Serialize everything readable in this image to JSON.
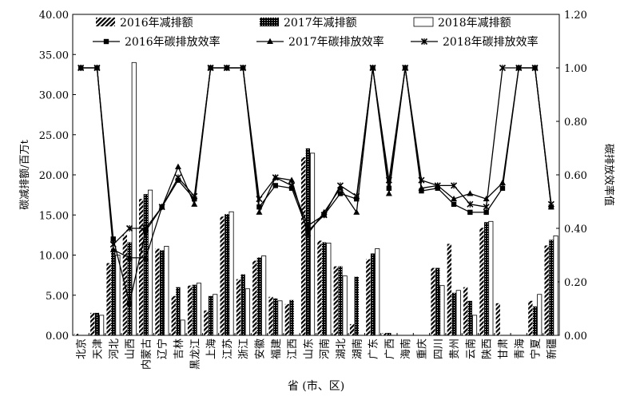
{
  "chart_data": {
    "type": "bar",
    "title": "",
    "xlabel": "省 (市、区)",
    "ylabel": "碳减排额/百万t",
    "y2label": "碳排放效率值",
    "ylim": [
      0,
      40
    ],
    "y2lim": [
      0,
      1.2
    ],
    "yticks": [
      "0.00",
      "5.00",
      "10.00",
      "15.00",
      "20.00",
      "25.00",
      "30.00",
      "35.00",
      "40.00"
    ],
    "y2ticks": [
      "0.00",
      "0.20",
      "0.40",
      "0.60",
      "0.80",
      "1.00",
      "1.20"
    ],
    "categories": [
      "北京",
      "天津",
      "河北",
      "山西",
      "内蒙古",
      "辽宁",
      "吉林",
      "黑龙江",
      "上海",
      "江苏",
      "浙江",
      "安徽",
      "福建",
      "江西",
      "山东",
      "河南",
      "湖北",
      "湖南",
      "广东",
      "广西",
      "海南",
      "重庆",
      "四川",
      "贵州",
      "云南",
      "陕西",
      "甘肃",
      "青海",
      "宁夏",
      "新疆"
    ],
    "series": [
      {
        "name": "2016年减排额",
        "kind": "bar",
        "axis": "left",
        "values": [
          0.2,
          2.8,
          9.0,
          12.5,
          17.0,
          10.8,
          4.9,
          6.2,
          3.1,
          14.8,
          7.0,
          9.3,
          4.8,
          3.9,
          22.2,
          11.8,
          8.6,
          1.4,
          9.5,
          0.3,
          0,
          0,
          8.4,
          11.4,
          6.0,
          13.4,
          4.0,
          0,
          4.3,
          11.2
        ]
      },
      {
        "name": "2017年减排额",
        "kind": "bar",
        "axis": "left",
        "values": [
          0,
          2.8,
          10.8,
          11.6,
          17.6,
          10.6,
          6.0,
          6.3,
          4.9,
          15.1,
          7.6,
          9.7,
          4.6,
          4.4,
          23.3,
          11.6,
          8.6,
          7.3,
          10.2,
          0.3,
          0,
          0,
          8.4,
          5.3,
          4.3,
          14.1,
          0,
          0,
          3.6,
          11.9
        ]
      },
      {
        "name": "2018年减排额",
        "kind": "bar",
        "axis": "left",
        "values": [
          0,
          2.5,
          10.0,
          34.0,
          18.1,
          11.1,
          1.9,
          6.5,
          5.1,
          15.4,
          5.8,
          9.9,
          4.3,
          0,
          22.7,
          11.5,
          7.4,
          0,
          10.8,
          0,
          0,
          0,
          6.2,
          5.6,
          2.5,
          14.2,
          0,
          0,
          5.1,
          12.4
        ]
      },
      {
        "name": "2016年碳排放效率",
        "kind": "line",
        "marker": "square",
        "axis": "right",
        "values": [
          1.0,
          1.0,
          0.36,
          0.12,
          0.39,
          0.48,
          0.58,
          0.51,
          1.0,
          1.0,
          1.0,
          0.48,
          0.56,
          0.55,
          0.39,
          0.45,
          0.53,
          0.51,
          1.0,
          0.55,
          1.0,
          0.54,
          0.55,
          0.49,
          0.46,
          0.46,
          0.55,
          1.0,
          1.0,
          0.48
        ]
      },
      {
        "name": "2017年碳排放效率",
        "kind": "line",
        "marker": "triangle",
        "axis": "right",
        "values": [
          1.0,
          1.0,
          0.32,
          0.29,
          0.29,
          0.48,
          0.63,
          0.49,
          1.0,
          1.0,
          1.0,
          0.46,
          0.59,
          0.58,
          0.38,
          0.46,
          0.55,
          0.46,
          1.0,
          0.53,
          1.0,
          0.55,
          0.56,
          0.51,
          0.53,
          0.51,
          0.57,
          1.0,
          1.0,
          0.48
        ]
      },
      {
        "name": "2018年碳排放效率",
        "kind": "line",
        "marker": "x",
        "axis": "right",
        "values": [
          1.0,
          1.0,
          0.34,
          0.4,
          0.4,
          0.48,
          0.59,
          0.52,
          1.0,
          1.0,
          1.0,
          0.51,
          0.59,
          0.56,
          0.41,
          0.45,
          0.56,
          0.52,
          1.0,
          0.58,
          1.0,
          0.58,
          0.56,
          0.56,
          0.49,
          0.48,
          1.0,
          1.0,
          1.0,
          0.49
        ]
      }
    ],
    "legend": "top, inside plot, 3 columns"
  }
}
